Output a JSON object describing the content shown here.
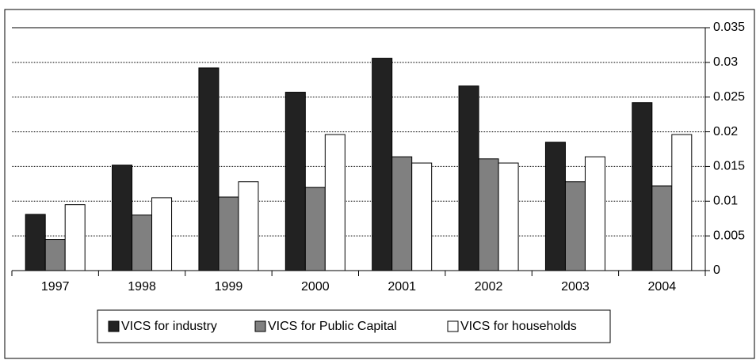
{
  "chart_data": {
    "type": "bar",
    "categories": [
      "1997",
      "1998",
      "1999",
      "2000",
      "2001",
      "2002",
      "2003",
      "2004"
    ],
    "series": [
      {
        "name": "VICS for industry",
        "color": "#222222",
        "values": [
          0.0081,
          0.0152,
          0.0292,
          0.0257,
          0.0306,
          0.0266,
          0.0185,
          0.0242
        ]
      },
      {
        "name": "VICS for Public Capital",
        "color": "#808080",
        "values": [
          0.0045,
          0.008,
          0.0106,
          0.012,
          0.0164,
          0.0161,
          0.0128,
          0.0122
        ]
      },
      {
        "name": "VICS for households",
        "color": "#ffffff",
        "values": [
          0.0095,
          0.0105,
          0.0128,
          0.0196,
          0.0155,
          0.0155,
          0.0164,
          0.0196
        ]
      }
    ],
    "ylim": [
      0,
      0.035
    ],
    "yticks": [
      0,
      0.005,
      0.01,
      0.015,
      0.02,
      0.025,
      0.03,
      0.035
    ],
    "grid": true,
    "legend": "bottom"
  }
}
